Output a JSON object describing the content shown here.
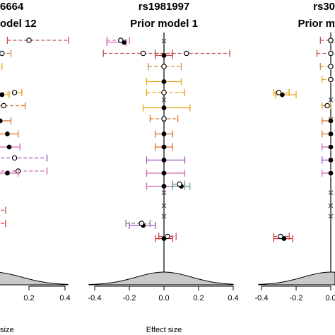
{
  "panels": [
    {
      "id": "left",
      "title_line1": "6664",
      "title_line2": "odel 12"
    },
    {
      "id": "center",
      "title_line1": "rs1981997",
      "title_line2": "Prior model 1"
    },
    {
      "id": "right",
      "title_line1": "rs30",
      "title_line2": "Prior m"
    }
  ],
  "colors": {
    "axis": "#000000",
    "density_fill": "#c9c9c9",
    "orange": "#e8a317",
    "dark_orange": "#e07020",
    "brown_red": "#c0504d",
    "red": "#e0303a",
    "pink": "#d36ab0",
    "purple": "#9a4dbf",
    "slate": "#6f8a8a",
    "teal": "#5fa58f",
    "cross": "#3c3c5a"
  },
  "chart_data": [
    {
      "type": "scatter",
      "title": "6664 / odel 12",
      "xlabel": "size",
      "x_tick_labels": [
        "0.2",
        "0.4"
      ],
      "xlim": [
        -0.05,
        0.42
      ],
      "legend": "none",
      "series": [
        {
          "row": 1,
          "x": 0.2,
          "lo": 0.08,
          "hi": 0.42,
          "marker": "open",
          "color": "#c0504d"
        },
        {
          "row": 2,
          "x": 0.05,
          "lo": -0.05,
          "hi": 0.1,
          "marker": "open",
          "color": "#d08a3a"
        },
        {
          "row": 3,
          "x": 0.0,
          "lo": -0.05,
          "hi": 0.05,
          "marker": "open",
          "color": "#e8a317"
        },
        {
          "row": 4,
          "x": 0.0,
          "lo": -0.05,
          "hi": 0.03,
          "marker": "open",
          "color": "#e8a317"
        },
        {
          "row": 5,
          "x": 0.12,
          "lo": -0.05,
          "hi": 0.16,
          "marker": "open",
          "color": "#e8a317"
        },
        {
          "row": 5,
          "x": 0.05,
          "lo": -0.05,
          "hi": 0.09,
          "marker": "filled",
          "color": "#e8a317"
        },
        {
          "row": 6,
          "x": 0.06,
          "lo": 0.0,
          "hi": 0.18,
          "marker": "open",
          "color": "#e07020"
        },
        {
          "row": 7,
          "x": 0.04,
          "lo": -0.05,
          "hi": 0.1,
          "marker": "filled",
          "color": "#e07020"
        },
        {
          "row": 8,
          "x": 0.08,
          "lo": -0.05,
          "hi": 0.14,
          "marker": "filled",
          "color": "#e07020"
        },
        {
          "row": 9,
          "x": 0.09,
          "lo": -0.05,
          "hi": 0.15,
          "marker": "filled",
          "color": "#d36ab0"
        },
        {
          "row": 10,
          "x": 0.12,
          "lo": -0.05,
          "hi": 0.3,
          "marker": "open",
          "color": "#9a4dbf"
        },
        {
          "row": 11,
          "x": 0.14,
          "lo": -0.05,
          "hi": 0.3,
          "marker": "open",
          "color": "#d36ab0"
        },
        {
          "row": 11,
          "x": 0.08,
          "lo": -0.05,
          "hi": 0.14,
          "marker": "filled",
          "color": "#d36ab0"
        },
        {
          "row": 14,
          "x": 0.0,
          "lo": -0.05,
          "hi": 0.07,
          "marker": "open",
          "color": "#c0504d"
        },
        {
          "row": 15,
          "x": 0.0,
          "lo": -0.05,
          "hi": 0.07,
          "marker": "open",
          "color": "#e0303a"
        }
      ]
    },
    {
      "type": "scatter",
      "title": "rs1981997 / Prior model 1",
      "xlabel": "Effect size",
      "x_tick_labels": [
        "-0.4",
        "-0.2",
        "0.0",
        "0.2",
        "0.4"
      ],
      "xlim": [
        -0.43,
        0.43
      ],
      "legend": "none",
      "series": [
        {
          "row": 1,
          "x": -0.23,
          "lo": -0.33,
          "hi": -0.22,
          "marker": "filled",
          "color": "#d36ab0"
        },
        {
          "row": 1,
          "x": -0.25,
          "lo": -0.33,
          "hi": -0.2,
          "marker": "open",
          "color": "#d36ab0"
        },
        {
          "row": 2,
          "x": -0.12,
          "lo": -0.35,
          "hi": 0.05,
          "marker": "open",
          "color": "#c0504d"
        },
        {
          "row": 2,
          "x": 0.13,
          "lo": -0.05,
          "hi": 0.38,
          "marker": "open",
          "color": "#c0504d"
        },
        {
          "row": 2,
          "x": 0.0,
          "lo": -0.05,
          "hi": 0.05,
          "marker": "filled",
          "color": "#c0504d"
        },
        {
          "row": 3,
          "x": 0.0,
          "lo": -0.09,
          "hi": 0.1,
          "marker": "open",
          "color": "#d08a3a"
        },
        {
          "row": 4,
          "x": 0.0,
          "lo": -0.1,
          "hi": 0.1,
          "marker": "filled",
          "color": "#e8a317"
        },
        {
          "row": 5,
          "x": 0.0,
          "lo": -0.1,
          "hi": 0.12,
          "marker": "open",
          "color": "#e8a317"
        },
        {
          "row": 6,
          "x": 0.0,
          "lo": -0.12,
          "hi": 0.15,
          "marker": "filled",
          "color": "#e8a317"
        },
        {
          "row": 7,
          "x": 0.0,
          "lo": -0.08,
          "hi": 0.08,
          "marker": "open",
          "color": "#e07020"
        },
        {
          "row": 8,
          "x": 0.0,
          "lo": -0.05,
          "hi": 0.05,
          "marker": "filled",
          "color": "#e07020"
        },
        {
          "row": 9,
          "x": 0.0,
          "lo": -0.05,
          "hi": 0.05,
          "marker": "filled",
          "color": "#e07020"
        },
        {
          "row": 10,
          "x": 0.0,
          "lo": -0.1,
          "hi": 0.12,
          "marker": "filled",
          "color": "#9a4dbf"
        },
        {
          "row": 11,
          "x": 0.0,
          "lo": -0.1,
          "hi": 0.12,
          "marker": "filled",
          "color": "#d36ab0"
        },
        {
          "row": 12,
          "x": 0.0,
          "lo": -0.1,
          "hi": 0.12,
          "marker": "filled",
          "color": "#d36ab0"
        },
        {
          "row": 12,
          "x": 0.1,
          "lo": 0.05,
          "hi": 0.15,
          "marker": "filled",
          "color": "#5fa58f"
        },
        {
          "row": 12,
          "x": 0.09,
          "lo": 0.05,
          "hi": 0.12,
          "marker": "open",
          "color": "#6f8a8a"
        },
        {
          "row": 15,
          "x": -0.12,
          "lo": -0.2,
          "hi": -0.05,
          "marker": "filled",
          "color": "#9a4dbf"
        },
        {
          "row": 15,
          "x": -0.13,
          "lo": -0.22,
          "hi": -0.08,
          "marker": "open",
          "color": "#6f8a8a"
        },
        {
          "row": 16,
          "x": 0.0,
          "lo": -0.05,
          "hi": 0.05,
          "marker": "filled",
          "color": "#e0303a"
        },
        {
          "row": 16,
          "x": 0.02,
          "lo": -0.03,
          "hi": 0.07,
          "marker": "open",
          "color": "#c0504d"
        }
      ]
    },
    {
      "type": "scatter",
      "title": "rs30 / Prior m",
      "xlabel": "",
      "x_tick_labels": [
        "-0.4",
        "-0.2",
        "0.0"
      ],
      "xlim": [
        -0.43,
        0.0
      ],
      "legend": "none",
      "series": [
        {
          "row": 1,
          "x": 0.0,
          "lo": -0.06,
          "hi": 0.0,
          "marker": "open",
          "color": "#c0504d"
        },
        {
          "row": 2,
          "x": 0.0,
          "lo": -0.08,
          "hi": 0.0,
          "marker": "open",
          "color": "#c0504d"
        },
        {
          "row": 3,
          "x": 0.0,
          "lo": -0.06,
          "hi": 0.0,
          "marker": "open",
          "color": "#d08a3a"
        },
        {
          "row": 4,
          "x": 0.0,
          "lo": -0.05,
          "hi": 0.0,
          "marker": "open",
          "color": "#e8a317"
        },
        {
          "row": 5,
          "x": -0.28,
          "lo": -0.32,
          "hi": -0.2,
          "marker": "filled",
          "color": "#e8a317"
        },
        {
          "row": 5,
          "x": -0.3,
          "lo": -0.33,
          "hi": -0.24,
          "marker": "open",
          "color": "#e8a317"
        },
        {
          "row": 6,
          "x": -0.02,
          "lo": -0.05,
          "hi": 0.0,
          "marker": "open",
          "color": "#e8a317"
        },
        {
          "row": 7,
          "x": 0.0,
          "lo": -0.05,
          "hi": 0.0,
          "marker": "filled",
          "color": "#e07020"
        },
        {
          "row": 8,
          "x": 0.0,
          "lo": -0.05,
          "hi": 0.0,
          "marker": "filled",
          "color": "#e07020"
        },
        {
          "row": 9,
          "x": 0.0,
          "lo": -0.05,
          "hi": 0.0,
          "marker": "filled",
          "color": "#d36ab0"
        },
        {
          "row": 10,
          "x": 0.0,
          "lo": -0.05,
          "hi": 0.0,
          "marker": "filled",
          "color": "#9a4dbf"
        },
        {
          "row": 11,
          "x": 0.0,
          "lo": -0.05,
          "hi": 0.0,
          "marker": "filled",
          "color": "#d36ab0"
        },
        {
          "row": 16,
          "x": -0.27,
          "lo": -0.33,
          "hi": -0.22,
          "marker": "filled",
          "color": "#e0303a"
        },
        {
          "row": 16,
          "x": -0.29,
          "lo": -0.33,
          "hi": -0.24,
          "marker": "open",
          "color": "#c0504d"
        }
      ]
    }
  ]
}
